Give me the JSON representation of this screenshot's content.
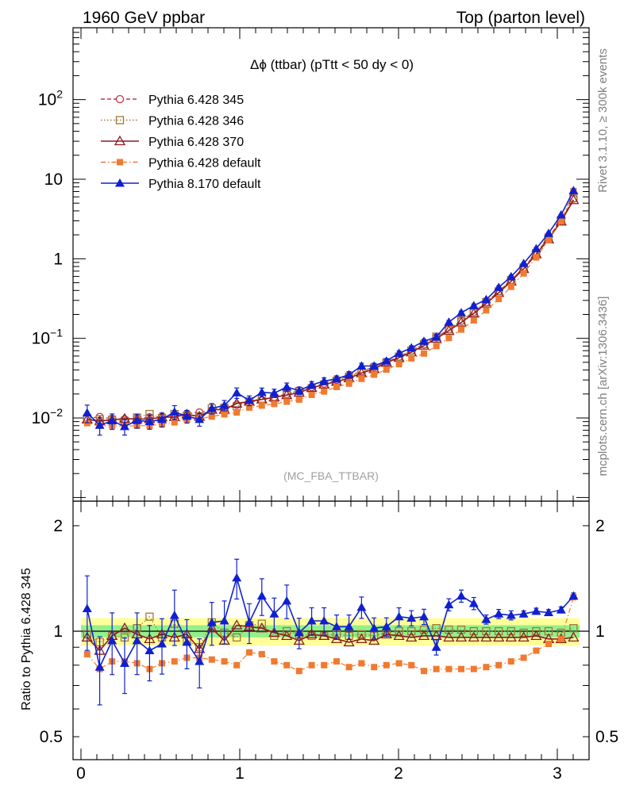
{
  "header": {
    "left": "1960 GeV ppbar",
    "right": "Top (parton level)"
  },
  "side_text": {
    "rivet": "Rivet 3.1.10, ≥ 300k events",
    "mcplots": "mcplots.cern.ch [arXiv:1306.3436]"
  },
  "watermark": "(MC_FBA_TTBAR)",
  "chart_data": [
    {
      "type": "line",
      "title": "Δϕ (ttbar) (pTtt < 50 dy < 0)",
      "xlabel": "",
      "ylabel": "",
      "yscale": "log",
      "xlim": [
        -0.05,
        3.2
      ],
      "ylim": [
        0.0009,
        800
      ],
      "xticks": [
        "0",
        "1",
        "2",
        "3"
      ],
      "yticks": [
        "10^-2",
        "10^-1",
        "1",
        "10",
        "10^2"
      ],
      "legend_position": "top-left",
      "x": [
        0.039,
        0.118,
        0.196,
        0.275,
        0.353,
        0.432,
        0.51,
        0.589,
        0.667,
        0.746,
        0.824,
        0.903,
        0.981,
        1.06,
        1.139,
        1.217,
        1.296,
        1.374,
        1.453,
        1.531,
        1.61,
        1.688,
        1.767,
        1.846,
        1.924,
        2.003,
        2.081,
        2.16,
        2.238,
        2.317,
        2.395,
        2.474,
        2.552,
        2.631,
        2.709,
        2.788,
        2.867,
        2.945,
        3.024,
        3.102
      ],
      "series": [
        {
          "name": "Pythia 6.428 345",
          "color": "#c8324a",
          "marker": "open-circle",
          "dash": "dashed",
          "values": [
            0.01,
            0.0103,
            0.0098,
            0.0096,
            0.0099,
            0.0102,
            0.0104,
            0.0107,
            0.0113,
            0.0117,
            0.0125,
            0.0135,
            0.0146,
            0.0156,
            0.0167,
            0.0183,
            0.0201,
            0.0222,
            0.0244,
            0.027,
            0.03,
            0.034,
            0.0385,
            0.044,
            0.0505,
            0.059,
            0.07,
            0.084,
            0.103,
            0.13,
            0.166,
            0.215,
            0.285,
            0.39,
            0.54,
            0.78,
            1.18,
            1.85,
            3.1,
            5.7
          ]
        },
        {
          "name": "Pythia 6.428 346",
          "color": "#a07838",
          "marker": "open-square",
          "dash": "dotted",
          "values": [
            0.0098,
            0.0096,
            0.0095,
            0.0092,
            0.0101,
            0.0112,
            0.01,
            0.0112,
            0.0106,
            0.0105,
            0.0132,
            0.0134,
            0.014,
            0.0162,
            0.0175,
            0.0178,
            0.0201,
            0.0218,
            0.0236,
            0.0263,
            0.0294,
            0.033,
            0.0378,
            0.0428,
            0.05,
            0.059,
            0.0703,
            0.0848,
            0.105,
            0.131,
            0.168,
            0.215,
            0.285,
            0.389,
            0.54,
            0.776,
            1.18,
            1.85,
            3.06,
            5.8
          ]
        },
        {
          "name": "Pythia 6.428 370",
          "color": "#8c1c20",
          "marker": "open-triangle",
          "dash": "solid",
          "values": [
            0.0096,
            0.0091,
            0.0095,
            0.0098,
            0.0097,
            0.0097,
            0.0102,
            0.0103,
            0.0111,
            0.0104,
            0.0127,
            0.0127,
            0.0152,
            0.0161,
            0.0171,
            0.0182,
            0.0194,
            0.0208,
            0.0239,
            0.0263,
            0.0285,
            0.0316,
            0.0366,
            0.0412,
            0.0495,
            0.0571,
            0.0671,
            0.0812,
            0.0995,
            0.125,
            0.159,
            0.206,
            0.274,
            0.374,
            0.52,
            0.747,
            1.14,
            1.76,
            2.95,
            5.47
          ]
        },
        {
          "name": "Pythia 6.428 default",
          "color": "#f07a30",
          "marker": "filled-square",
          "dash": "dashdot",
          "values": [
            0.0086,
            0.008,
            0.008,
            0.0079,
            0.008,
            0.008,
            0.0084,
            0.0088,
            0.0095,
            0.0098,
            0.0104,
            0.0111,
            0.0117,
            0.0135,
            0.0143,
            0.015,
            0.016,
            0.017,
            0.0195,
            0.0215,
            0.0245,
            0.027,
            0.031,
            0.035,
            0.0405,
            0.0475,
            0.056,
            0.0645,
            0.08,
            0.101,
            0.129,
            0.168,
            0.225,
            0.312,
            0.445,
            0.655,
            1.04,
            1.71,
            2.95,
            7.1
          ]
        },
        {
          "name": "Pythia 8.170 default",
          "color": "#1020d0",
          "marker": "filled-triangle",
          "dash": "solid",
          "values": [
            0.0116,
            0.0081,
            0.0092,
            0.0078,
            0.0093,
            0.009,
            0.0096,
            0.0119,
            0.0105,
            0.0096,
            0.0132,
            0.0144,
            0.0207,
            0.0166,
            0.021,
            0.0205,
            0.0245,
            0.022,
            0.026,
            0.029,
            0.031,
            0.035,
            0.045,
            0.045,
            0.052,
            0.065,
            0.076,
            0.092,
            0.104,
            0.16,
            0.21,
            0.258,
            0.307,
            0.438,
            0.597,
            0.872,
            1.34,
            2.09,
            3.56,
            7.19
          ]
        }
      ]
    },
    {
      "type": "line",
      "title": "",
      "xlabel": "",
      "ylabel": "Ratio to Pythia 6.428 345",
      "yscale": "log",
      "xlim": [
        -0.05,
        3.2
      ],
      "ylim": [
        0.43,
        2.35
      ],
      "xticks": [
        "0",
        "1",
        "2",
        "3"
      ],
      "yticks": [
        "0.5",
        "1",
        "2"
      ],
      "reference_line": 1,
      "x": [
        0.039,
        0.118,
        0.196,
        0.275,
        0.353,
        0.432,
        0.51,
        0.589,
        0.667,
        0.746,
        0.824,
        0.903,
        0.981,
        1.06,
        1.139,
        1.217,
        1.296,
        1.374,
        1.453,
        1.531,
        1.61,
        1.688,
        1.767,
        1.846,
        1.924,
        2.003,
        2.081,
        2.16,
        2.238,
        2.317,
        2.395,
        2.474,
        2.552,
        2.631,
        2.709,
        2.788,
        2.867,
        2.945,
        3.024,
        3.102
      ],
      "series": [
        {
          "name": "Pythia 6.428 346",
          "color": "#a07838",
          "marker": "open-square",
          "dash": "dotted",
          "values": [
            0.98,
            0.93,
            0.97,
            0.96,
            1.02,
            1.1,
            0.96,
            1.05,
            0.94,
            0.9,
            1.06,
            0.99,
            0.96,
            1.04,
            1.05,
            0.97,
            1.0,
            0.98,
            0.97,
            0.97,
            0.98,
            0.97,
            0.98,
            0.97,
            0.99,
            1.0,
            1.0,
            1.01,
            1.02,
            1.01,
            1.01,
            1.0,
            1.0,
            1.0,
            1.0,
            0.99,
            1.0,
            1.0,
            0.99,
            1.02
          ]
        },
        {
          "name": "Pythia 6.428 370",
          "color": "#8c1c20",
          "marker": "open-triangle",
          "dash": "solid",
          "values": [
            0.96,
            0.88,
            0.97,
            1.02,
            0.98,
            0.95,
            0.98,
            0.96,
            0.98,
            0.89,
            1.02,
            0.94,
            1.04,
            1.03,
            1.02,
            0.99,
            0.97,
            0.94,
            0.98,
            0.97,
            0.95,
            0.93,
            0.95,
            0.94,
            0.98,
            0.97,
            0.96,
            0.97,
            0.97,
            0.96,
            0.96,
            0.96,
            0.96,
            0.96,
            0.96,
            0.96,
            0.97,
            0.95,
            0.95,
            0.96
          ]
        },
        {
          "name": "Pythia 6.428 default",
          "color": "#f07a30",
          "marker": "filled-square",
          "dash": "dashdot",
          "values": [
            0.86,
            0.78,
            0.82,
            0.82,
            0.81,
            0.78,
            0.81,
            0.82,
            0.84,
            0.84,
            0.83,
            0.82,
            0.8,
            0.87,
            0.86,
            0.82,
            0.8,
            0.77,
            0.8,
            0.8,
            0.82,
            0.79,
            0.81,
            0.79,
            0.8,
            0.81,
            0.8,
            0.77,
            0.78,
            0.78,
            0.78,
            0.78,
            0.79,
            0.8,
            0.82,
            0.84,
            0.88,
            0.92,
            0.95,
            1.25
          ]
        },
        {
          "name": "Pythia 8.170 default",
          "color": "#1020d0",
          "marker": "filled-triangle",
          "dash": "solid",
          "values": [
            1.16,
            0.79,
            0.94,
            0.81,
            0.94,
            0.88,
            0.92,
            1.11,
            0.93,
            0.82,
            1.06,
            1.07,
            1.42,
            1.06,
            1.26,
            1.12,
            1.22,
            0.99,
            1.07,
            1.07,
            1.03,
            1.03,
            1.17,
            1.02,
            1.03,
            1.1,
            1.09,
            1.1,
            0.9,
            1.19,
            1.26,
            1.2,
            1.08,
            1.12,
            1.11,
            1.12,
            1.14,
            1.13,
            1.15,
            1.26
          ]
        }
      ]
    }
  ]
}
